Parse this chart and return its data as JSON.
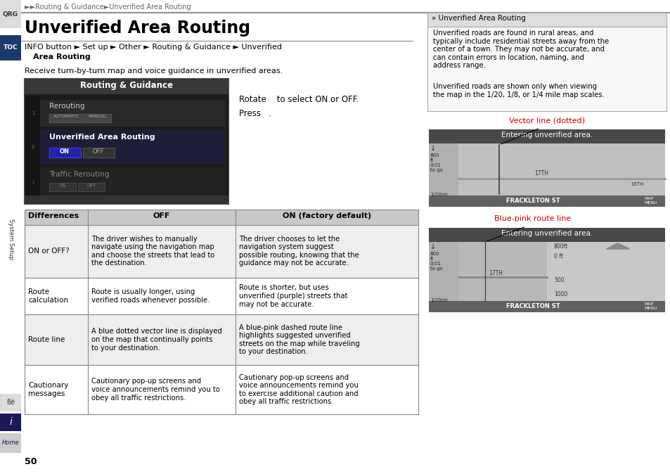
{
  "page_bg": "#ffffff",
  "breadcrumb": "►►Routing & Guidance►Unverified Area Routing",
  "breadcrumb_color": "#666666",
  "title": "Unverified Area Routing",
  "title_color": "#000000",
  "info_line1": "INFO button ► Set up ► Other ► Routing & Guidance ► Unverified",
  "info_line2": "  Area Routing",
  "body_text": "Receive turn-by-turn map and voice guidance in unverified areas.",
  "rotate_text": "Rotate    to select ON or OFF.",
  "press_text": "Press   .",
  "screen_title": "Routing & Guidance",
  "right_note_title": "» Unverified Area Routing",
  "right_para1": "Unverified roads are found in rural areas, and\ntypically include residential streets away from the\ncenter of a town. They may not be accurate, and\ncan contain errors in location, naming, and\naddress range.",
  "right_para2": "Unverified roads are shown only when viewing\nthe map in the 1/20, 1/8, or 1/4 mile map scales.",
  "vector_label": "Vector line (dotted)",
  "bluepink_label": "Blue-pink route line",
  "annotation_color": "#cc0000",
  "table_header_bg": "#c8c8c8",
  "col_headers": [
    "Differences",
    "OFF",
    "ON (factory default)"
  ],
  "rows": [
    {
      "col0": "ON or OFF?",
      "col1": "The driver wishes to manually\nnavigate using the navigation map\nand choose the streets that lead to\nthe destination.",
      "col2": "The driver chooses to let the\nnavigation system suggest\npossible routing, knowing that the\nguidance may not be accurate.",
      "bg": "#eeeeee"
    },
    {
      "col0": "Route\ncalculation",
      "col1": "Route is usually longer, using\nverified roads whenever possible.",
      "col2": "Route is shorter, but uses\nunverified (purple) streets that\nmay not be accurate.",
      "bg": "#ffffff"
    },
    {
      "col0": "Route line",
      "col1": "A blue dotted vector line is displayed\non the map that continually points\nto your destination.",
      "col2": "A blue-pink dashed route line\nhighlights suggested unverified\nstreets on the map while traveling\nto your destination.",
      "bg": "#eeeeee"
    },
    {
      "col0": "Cautionary\nmessages",
      "col1": "Cautionary pop-up screens and\nvoice announcements remind you to\nobey all traffic restrictions.",
      "col2": "Cautionary pop-up screens and\nvoice announcements remind you\nto exercise additional caution and\nobey all traffic restrictions.",
      "bg": "#ffffff"
    }
  ],
  "page_num": "50",
  "sidebar_qrg_bg": "#cccccc",
  "sidebar_toc_bg": "#1a3a6b",
  "sidebar_bottom_bg": "#cccccc"
}
